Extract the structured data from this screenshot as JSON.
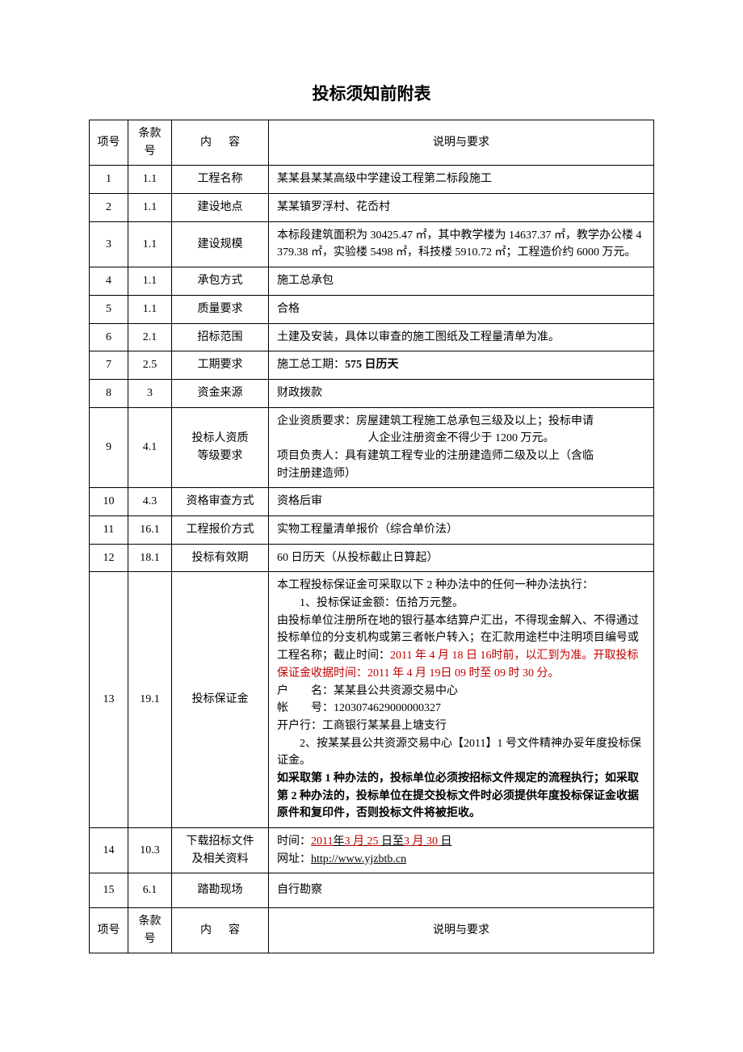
{
  "title": "投标须知前附表",
  "header": {
    "col1": "项号",
    "col2": "条款号",
    "col3_a": "内",
    "col3_b": "容",
    "col4": "说明与要求"
  },
  "footer": {
    "col1": "项号",
    "col2": "条款号",
    "col3_a": "内",
    "col3_b": "容",
    "col4": "说明与要求"
  },
  "rows": {
    "r1": {
      "idx": "1",
      "clause": "1.1",
      "content": "工程名称",
      "desc": "某某县某某高级中学建设工程第二标段施工"
    },
    "r2": {
      "idx": "2",
      "clause": "1.1",
      "content": "建设地点",
      "desc": "某某镇罗浮村、花岙村"
    },
    "r3": {
      "idx": "3",
      "clause": "1.1",
      "content": "建设规模",
      "desc": "本标段建筑面积为 30425.47 ㎡，其中教学楼为 14637.37 ㎡，教学办公楼 4379.38 ㎡，实验楼 5498 ㎡，科技楼 5910.72 ㎡；工程造价约 6000 万元。"
    },
    "r4": {
      "idx": "4",
      "clause": "1.1",
      "content": "承包方式",
      "desc": "施工总承包"
    },
    "r5": {
      "idx": "5",
      "clause": "1.1",
      "content": "质量要求",
      "desc": "合格"
    },
    "r6": {
      "idx": "6",
      "clause": "2.1",
      "content": "招标范围",
      "desc": "土建及安装，具体以审查的施工图纸及工程量清单为准。"
    },
    "r7": {
      "idx": "7",
      "clause": "2.5",
      "content": "工期要求",
      "desc_a": "施工总工期：",
      "desc_b": "575 日历天"
    },
    "r8": {
      "idx": "8",
      "clause": "3",
      "content": "资金来源",
      "desc": "财政拨款"
    },
    "r9": {
      "idx": "9",
      "clause": "4.1",
      "content_a": "投标人资质",
      "content_b": "等级要求",
      "desc_l1": "企业资质要求：房屋建筑工程施工总承包三级及以上；投标申请",
      "desc_l2": "人企业注册资金不得少于 1200 万元。",
      "desc_l3": "项目负责人：具有建筑工程专业的注册建造师二级及以上（含临",
      "desc_l4": "时注册建造师）"
    },
    "r10": {
      "idx": "10",
      "clause": "4.3",
      "content": "资格审查方式",
      "desc": "资格后审"
    },
    "r11": {
      "idx": "11",
      "clause": "16.1",
      "content": "工程报价方式",
      "desc": "实物工程量清单报价（综合单价法）"
    },
    "r12": {
      "idx": "12",
      "clause": "18.1",
      "content": "投标有效期",
      "desc": "60 日历天（从投标截止日算起）"
    },
    "r13": {
      "idx": "13",
      "clause": "19.1",
      "content": "投标保证金",
      "p1": "本工程投标保证金可采取以下 2 种办法中的任何一种办法执行：",
      "p2": "　　1、投标保证金额：伍拾万元整。",
      "p3a": "由投标单位注册所在地的银行基本结算户汇出，不得现金解入、不得通过投标单位的分支机构或第三者帐户转入；在汇款用途栏中注明项目编号或工程名称；截止时间：",
      "p3b": "2011 年 4 月 18 日 16时前，以汇到为准。开取投标保证金收据时间：2011 年 4 月 19日 09 时至 09 时 30 分。",
      "p4": "户　　名：某某县公共资源交易中心",
      "p5": "帐　　号：1203074629000000327",
      "p6": "开户行：工商银行某某县上塘支行",
      "p7": "　　2、按某某县公共资源交易中心【2011】1 号文件精神办妥年度投标保证金。",
      "p8": "如采取第 1 种办法的，投标单位必须按招标文件规定的流程执行；如采取第 2 种办法的，投标单位在提交投标文件时必须提供年度投标保证金收据原件和复印件，否则投标文件将被拒收。"
    },
    "r14": {
      "idx": "14",
      "clause": "10.3",
      "content_a": "下载招标文件",
      "content_b": "及相关资料",
      "l1a": "时间：",
      "l1b": "2011",
      "l1c": "年",
      "l1d": "3 月",
      "l1e": "25 ",
      "l1f": "日至",
      "l1g": "3 月",
      "l1h": "30 ",
      "l1i": "日",
      "l2a": "网址：",
      "l2b": "http://www.yjzbtb.cn"
    },
    "r15": {
      "idx": "15",
      "clause": "6.1",
      "content": "踏勘现场",
      "desc": "自行勘察"
    }
  }
}
